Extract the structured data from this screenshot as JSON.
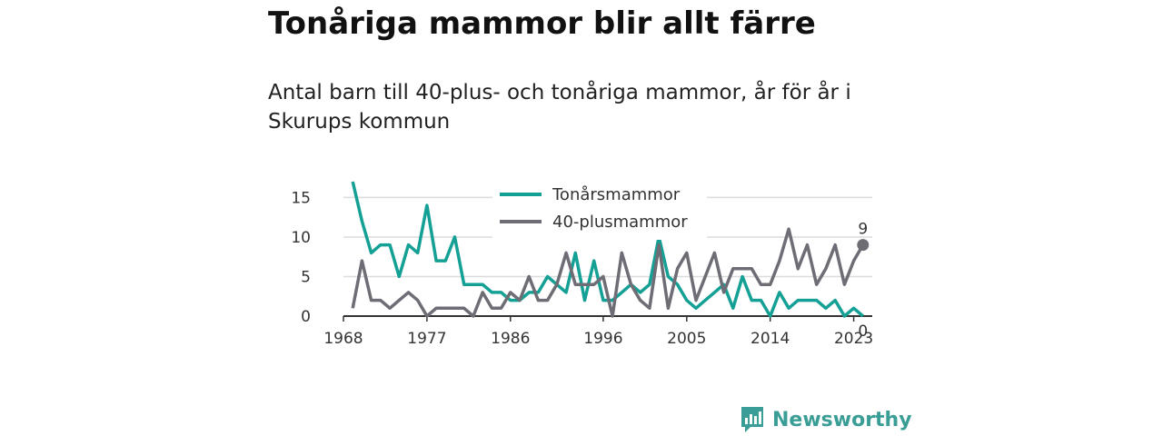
{
  "title": "Tonåriga mammor blir allt färre",
  "subtitle": "Antal barn till 40-plus- och tonåriga mammor, år för år i Skurups kommun",
  "brand": "Newsworthy",
  "chart_data": {
    "type": "line",
    "x": [
      1969,
      1970,
      1971,
      1972,
      1973,
      1974,
      1975,
      1976,
      1977,
      1978,
      1979,
      1980,
      1981,
      1982,
      1983,
      1984,
      1985,
      1986,
      1987,
      1988,
      1989,
      1990,
      1991,
      1992,
      1993,
      1994,
      1995,
      1996,
      1997,
      1998,
      1999,
      2000,
      2001,
      2002,
      2003,
      2004,
      2005,
      2006,
      2007,
      2008,
      2009,
      2010,
      2011,
      2012,
      2013,
      2014,
      2015,
      2016,
      2017,
      2018,
      2019,
      2020,
      2021,
      2022,
      2023,
      2024
    ],
    "series": [
      {
        "name": "Tonårsmammor",
        "color": "#14a095",
        "values": [
          17,
          12,
          8,
          9,
          9,
          5,
          9,
          8,
          14,
          7,
          7,
          10,
          4,
          4,
          4,
          3,
          3,
          2,
          2,
          3,
          3,
          5,
          4,
          3,
          8,
          2,
          7,
          2,
          2,
          3,
          4,
          3,
          4,
          10,
          5,
          4,
          2,
          1,
          2,
          3,
          4,
          1,
          5,
          2,
          2,
          0,
          3,
          1,
          2,
          2,
          2,
          1,
          2,
          0,
          1,
          0
        ]
      },
      {
        "name": "40-plusmammor",
        "color": "#6e6d75",
        "values": [
          1,
          7,
          2,
          2,
          1,
          2,
          3,
          2,
          0,
          1,
          1,
          1,
          1,
          0,
          3,
          1,
          1,
          3,
          2,
          5,
          2,
          2,
          4,
          8,
          4,
          4,
          4,
          5,
          0,
          8,
          4,
          2,
          1,
          9,
          1,
          6,
          8,
          2,
          5,
          8,
          3,
          6,
          6,
          6,
          4,
          4,
          7,
          11,
          6,
          9,
          4,
          6,
          9,
          4,
          7,
          9
        ]
      }
    ],
    "x_ticks": [
      1968,
      1977,
      1986,
      1996,
      2005,
      2014,
      2023
    ],
    "y_ticks": [
      0,
      5,
      10,
      15
    ],
    "ylim": [
      0,
      17
    ],
    "xlim": [
      1968,
      2025
    ],
    "end_labels": {
      "Tonårsmammor": "0",
      "40-plusmammor": "9"
    },
    "grid": "horizontal",
    "legend": "top-center"
  }
}
